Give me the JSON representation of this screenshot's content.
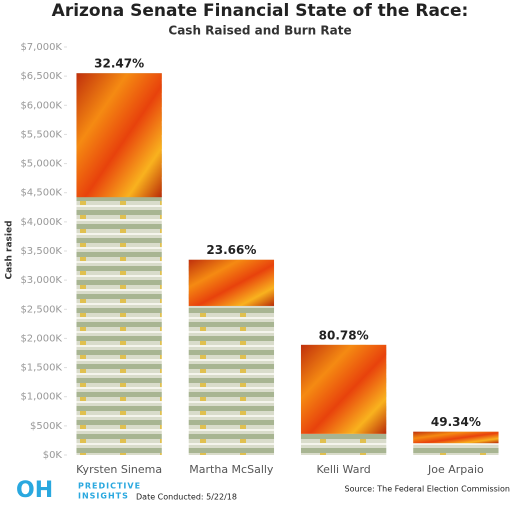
{
  "chart_data": {
    "type": "burn-bar",
    "title": "Arizona Senate Financial State of the Race:",
    "subtitle": "Cash Raised and Burn Rate",
    "y_label": "Cash rasied",
    "categories": [
      "Kyrsten Sinema",
      "Martha McSally",
      "Kelli Ward",
      "Joe Arpaio"
    ],
    "values": [
      6550,
      3350,
      1890,
      400
    ],
    "burn_rate": {
      "values": [
        32.47,
        23.66,
        80.78,
        49.34
      ],
      "value_labels": [
        "32.47%",
        "23.66%",
        "80.78%",
        "49.34%"
      ]
    },
    "ylim": [
      0,
      7000
    ],
    "yticks": [
      {
        "value": 0,
        "label": "$0K"
      },
      {
        "value": 500,
        "label": "$500K"
      },
      {
        "value": 1000,
        "label": "$1,000K"
      },
      {
        "value": 1500,
        "label": "$1,500K"
      },
      {
        "value": 2000,
        "label": "$2,000K"
      },
      {
        "value": 2500,
        "label": "$2,500K"
      },
      {
        "value": 3000,
        "label": "$3,000K"
      },
      {
        "value": 3500,
        "label": "$3,500K"
      },
      {
        "value": 4000,
        "label": "$4,000K"
      },
      {
        "value": 4500,
        "label": "$4,500K"
      },
      {
        "value": 5000,
        "label": "$5,000K"
      },
      {
        "value": 5500,
        "label": "$5,500K"
      },
      {
        "value": 6000,
        "label": "$6,000K"
      },
      {
        "value": 6500,
        "label": "$6,500K"
      },
      {
        "value": 7000,
        "label": "$7,000K"
      }
    ],
    "logo": {
      "mark": "OH",
      "line1": "PREDICTIVE",
      "line2": "INSIGHTS"
    },
    "date_note": "Date Conducted: 5/22/18",
    "source": "Source: The Federal Election Commission"
  }
}
